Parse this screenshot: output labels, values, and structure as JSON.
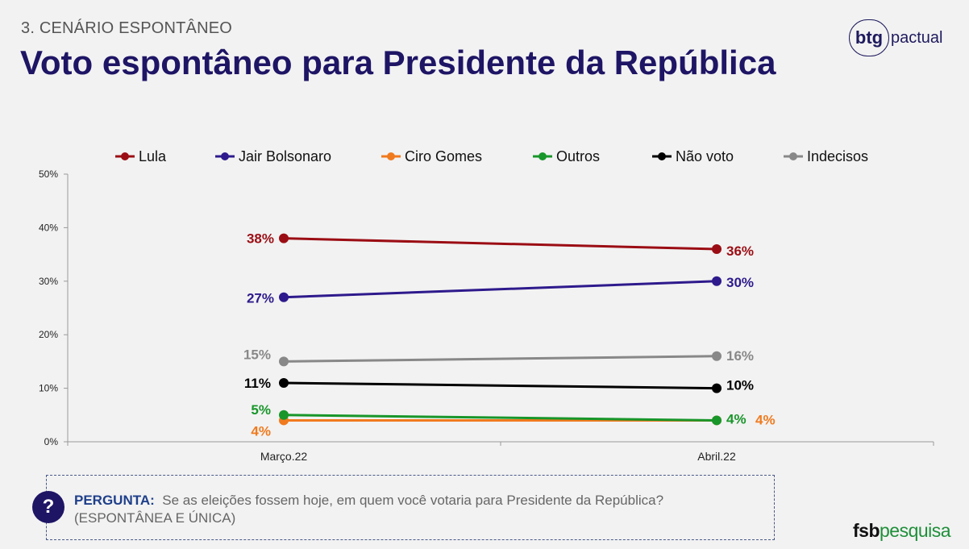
{
  "header": {
    "section": "3. CENÁRIO ESPONTÂNEO",
    "title": "Voto espontâneo para Presidente da República"
  },
  "logos": {
    "btg_mark": "btg",
    "btg_word": "pactual",
    "fsb_bold": "fsb",
    "fsb_light": "pesquisa"
  },
  "question": {
    "icon": "?",
    "label": "PERGUNTA:",
    "text": "Se as eleições fossem hoje, em quem você votaria para Presidente da República?",
    "note": "(ESPONTÂNEA E ÚNICA)"
  },
  "chart_data": {
    "type": "line",
    "categories": [
      "Março.22",
      "Abril.22"
    ],
    "ylim": [
      0,
      50
    ],
    "yticks": [
      0,
      10,
      20,
      30,
      40,
      50
    ],
    "ytick_labels": [
      "0%",
      "10%",
      "20%",
      "30%",
      "40%",
      "50%"
    ],
    "legend_position": "top",
    "grid": false,
    "series": [
      {
        "name": "Lula",
        "color": "#9b0d14",
        "values": [
          38,
          36
        ],
        "labels": [
          "38%",
          "36%"
        ]
      },
      {
        "name": "Jair Bolsonaro",
        "color": "#2e1a8c",
        "values": [
          27,
          30
        ],
        "labels": [
          "27%",
          "30%"
        ]
      },
      {
        "name": "Ciro Gomes",
        "color": "#f07a1e",
        "values": [
          4,
          4
        ],
        "labels": [
          "4%",
          "4%"
        ]
      },
      {
        "name": "Outros",
        "color": "#18962a",
        "values": [
          5,
          4
        ],
        "labels": [
          "5%",
          "4%"
        ]
      },
      {
        "name": "Não voto",
        "color": "#000000",
        "values": [
          11,
          10
        ],
        "labels": [
          "11%",
          "10%"
        ]
      },
      {
        "name": "Indecisos",
        "color": "#888888",
        "values": [
          15,
          16
        ],
        "labels": [
          "15%",
          "16%"
        ]
      }
    ]
  }
}
